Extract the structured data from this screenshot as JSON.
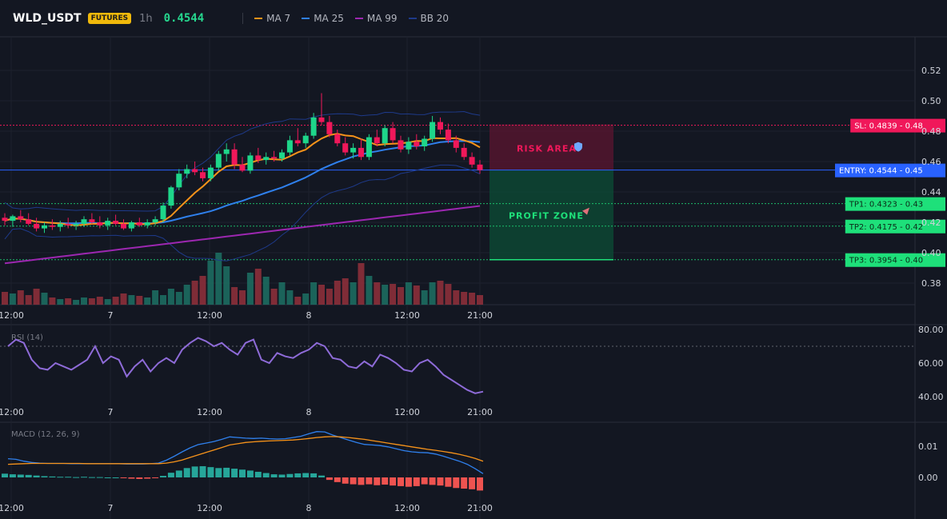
{
  "header": {
    "symbol": "WLD_USDT",
    "badge": "FUTURES",
    "timeframe": "1h",
    "price": "0.4544",
    "legend": [
      {
        "label": "MA 7",
        "color": "#f7931a"
      },
      {
        "label": "MA 25",
        "color": "#2f80ed"
      },
      {
        "label": "MA 99",
        "color": "#9c27b0"
      },
      {
        "label": "BB 20",
        "color": "#1e3a8a"
      }
    ]
  },
  "price_axis": [
    "0.52",
    "0.50",
    "0.48",
    "0.46",
    "0.44",
    "0.42",
    "0.40",
    "0.38"
  ],
  "time_axis": [
    "12:00",
    "7",
    "12:00",
    "8",
    "12:00",
    "21:00"
  ],
  "levels": {
    "sl": {
      "label": "SL: 0.4839 - 0.48",
      "value": 0.4839
    },
    "entry": {
      "label": "ENTRY: 0.4544 - 0.45",
      "value": 0.4544
    },
    "tp1": {
      "label": "TP1: 0.4323 - 0.43",
      "value": 0.4323
    },
    "tp2": {
      "label": "TP2: 0.4175 - 0.42",
      "value": 0.4175
    },
    "tp3": {
      "label": "TP3: 0.3954 - 0.40",
      "value": 0.3954
    }
  },
  "zones": {
    "risk_label": "RISK AREA",
    "risk_icon": "shield-icon",
    "profit_label": "PROFIT ZONE",
    "profit_icon": "rocket-icon"
  },
  "rsi": {
    "title": "RSI (14)",
    "axis": [
      "80.00",
      "60.00",
      "40.00"
    ]
  },
  "macd": {
    "title": "MACD (12, 26, 9)",
    "axis": [
      "0.01",
      "0.00"
    ]
  },
  "colors": {
    "up": "#26a69a",
    "down": "#ef5350",
    "ma7": "#f7931a",
    "ma25": "#2f80ed",
    "ma99": "#9c27b0",
    "bb": "#1e3a8a",
    "rsi": "#8e6bd8",
    "sl_tag": "#f0185a",
    "entry_tag": "#2962ff",
    "tp_tag": "#1ee07a"
  },
  "chart_data": {
    "type": "candlestick",
    "candles": [
      [
        0.423,
        0.426,
        0.418,
        0.421
      ],
      [
        0.421,
        0.425,
        0.417,
        0.424
      ],
      [
        0.424,
        0.428,
        0.42,
        0.422
      ],
      [
        0.422,
        0.426,
        0.418,
        0.419
      ],
      [
        0.419,
        0.423,
        0.414,
        0.416
      ],
      [
        0.416,
        0.42,
        0.413,
        0.418
      ],
      [
        0.418,
        0.422,
        0.415,
        0.417
      ],
      [
        0.417,
        0.421,
        0.414,
        0.419
      ],
      [
        0.419,
        0.423,
        0.416,
        0.418
      ],
      [
        0.418,
        0.421,
        0.415,
        0.419
      ],
      [
        0.419,
        0.424,
        0.417,
        0.422
      ],
      [
        0.422,
        0.426,
        0.419,
        0.42
      ],
      [
        0.42,
        0.424,
        0.416,
        0.418
      ],
      [
        0.418,
        0.423,
        0.415,
        0.421
      ],
      [
        0.421,
        0.425,
        0.418,
        0.419
      ],
      [
        0.419,
        0.422,
        0.415,
        0.416
      ],
      [
        0.416,
        0.421,
        0.414,
        0.42
      ],
      [
        0.42,
        0.423,
        0.417,
        0.418
      ],
      [
        0.418,
        0.422,
        0.416,
        0.42
      ],
      [
        0.42,
        0.424,
        0.418,
        0.422
      ],
      [
        0.422,
        0.433,
        0.42,
        0.431
      ],
      [
        0.431,
        0.444,
        0.429,
        0.443
      ],
      [
        0.443,
        0.455,
        0.441,
        0.452
      ],
      [
        0.452,
        0.458,
        0.449,
        0.455
      ],
      [
        0.455,
        0.46,
        0.451,
        0.453
      ],
      [
        0.453,
        0.456,
        0.447,
        0.449
      ],
      [
        0.449,
        0.458,
        0.447,
        0.456
      ],
      [
        0.456,
        0.467,
        0.454,
        0.465
      ],
      [
        0.465,
        0.472,
        0.46,
        0.468
      ],
      [
        0.468,
        0.472,
        0.455,
        0.458
      ],
      [
        0.458,
        0.463,
        0.453,
        0.454
      ],
      [
        0.454,
        0.466,
        0.452,
        0.464
      ],
      [
        0.464,
        0.469,
        0.459,
        0.461
      ],
      [
        0.461,
        0.466,
        0.458,
        0.463
      ],
      [
        0.463,
        0.467,
        0.46,
        0.462
      ],
      [
        0.462,
        0.468,
        0.46,
        0.466
      ],
      [
        0.466,
        0.477,
        0.464,
        0.474
      ],
      [
        0.474,
        0.482,
        0.47,
        0.472
      ],
      [
        0.472,
        0.479,
        0.469,
        0.477
      ],
      [
        0.477,
        0.492,
        0.475,
        0.489
      ],
      [
        0.489,
        0.505,
        0.484,
        0.486
      ],
      [
        0.486,
        0.49,
        0.476,
        0.478
      ],
      [
        0.478,
        0.481,
        0.47,
        0.472
      ],
      [
        0.472,
        0.476,
        0.464,
        0.466
      ],
      [
        0.466,
        0.472,
        0.462,
        0.469
      ],
      [
        0.469,
        0.475,
        0.461,
        0.463
      ],
      [
        0.463,
        0.478,
        0.461,
        0.476
      ],
      [
        0.476,
        0.481,
        0.47,
        0.472
      ],
      [
        0.472,
        0.484,
        0.47,
        0.482
      ],
      [
        0.482,
        0.486,
        0.472,
        0.474
      ],
      [
        0.474,
        0.477,
        0.466,
        0.468
      ],
      [
        0.468,
        0.476,
        0.465,
        0.473
      ],
      [
        0.473,
        0.478,
        0.468,
        0.47
      ],
      [
        0.47,
        0.477,
        0.467,
        0.475
      ],
      [
        0.475,
        0.49,
        0.473,
        0.486
      ],
      [
        0.486,
        0.489,
        0.478,
        0.481
      ],
      [
        0.481,
        0.485,
        0.472,
        0.474
      ],
      [
        0.474,
        0.477,
        0.466,
        0.469
      ],
      [
        0.469,
        0.472,
        0.461,
        0.463
      ],
      [
        0.463,
        0.466,
        0.456,
        0.458
      ],
      [
        0.458,
        0.461,
        0.452,
        0.4544
      ]
    ]
  }
}
